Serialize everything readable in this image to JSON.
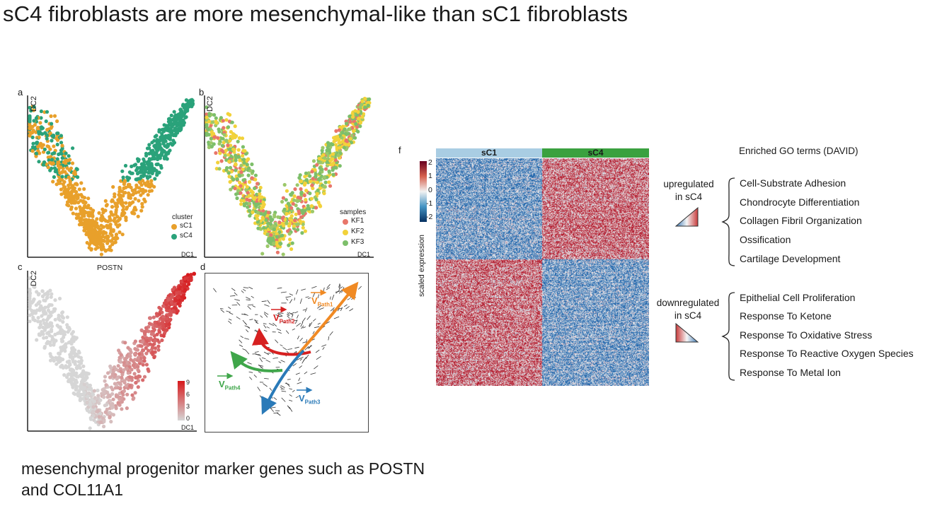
{
  "title": "sC4 fibroblasts are more mesenchymal-like than sC1 fibroblasts",
  "caption_lines": [
    "mesenchymal progenitor marker genes such as POSTN",
    "and COL11A1"
  ],
  "panels": {
    "a": {
      "letter": "a",
      "xlabel": "DC1",
      "ylabel": "DC2",
      "legend_title": "cluster",
      "legend": [
        {
          "label": "sC1",
          "color": "#e8a02b"
        },
        {
          "label": "sC4",
          "color": "#2aa27a"
        }
      ]
    },
    "b": {
      "letter": "b",
      "xlabel": "DC1",
      "ylabel": "DC2",
      "legend_title": "samples",
      "legend": [
        {
          "label": "KF1",
          "color": "#e8766a"
        },
        {
          "label": "KF2",
          "color": "#f2d23a"
        },
        {
          "label": "KF3",
          "color": "#7dbf6a"
        }
      ]
    },
    "c": {
      "letter": "c",
      "title": "POSTN",
      "xlabel": "DC1",
      "ylabel": "DC2",
      "scale_ticks": [
        "9",
        "6",
        "3",
        "0"
      ],
      "low_color": "#d6d6d6",
      "high_color": "#d7191c"
    },
    "d": {
      "letter": "d",
      "paths": [
        {
          "label": "V",
          "sub": "Path1",
          "color": "#f08a24"
        },
        {
          "label": "V",
          "sub": "Path2",
          "color": "#d62020"
        },
        {
          "label": "V",
          "sub": "Path3",
          "color": "#2a7ab8"
        },
        {
          "label": "V",
          "sub": "Path4",
          "color": "#3fa64a"
        }
      ]
    },
    "f": {
      "letter": "f",
      "heatmap_columns": [
        {
          "label": "sC1",
          "color": "#a9cde3"
        },
        {
          "label": "sC4",
          "color": "#3aa13f"
        }
      ],
      "scale_label": "scaled expression",
      "scale_ticks": [
        "2",
        "1",
        "0",
        "-1",
        "-2"
      ],
      "go_header": "Enriched GO terms (DAVID)",
      "up": {
        "label_line1": "upregulated",
        "label_line2": "in sC4",
        "terms": [
          "Cell-Substrate Adhesion",
          "Chondrocyte Differentiation",
          "Collagen Fibril Organization",
          "Ossification",
          "Cartilage Development"
        ]
      },
      "down": {
        "label_line1": "downregulated",
        "label_line2": "in sC4",
        "terms": [
          "Epithelial Cell Proliferation",
          "Response To Ketone",
          "Response To Oxidative Stress",
          "Response To Reactive Oxygen Species",
          "Response To Metal Ion"
        ]
      }
    }
  }
}
